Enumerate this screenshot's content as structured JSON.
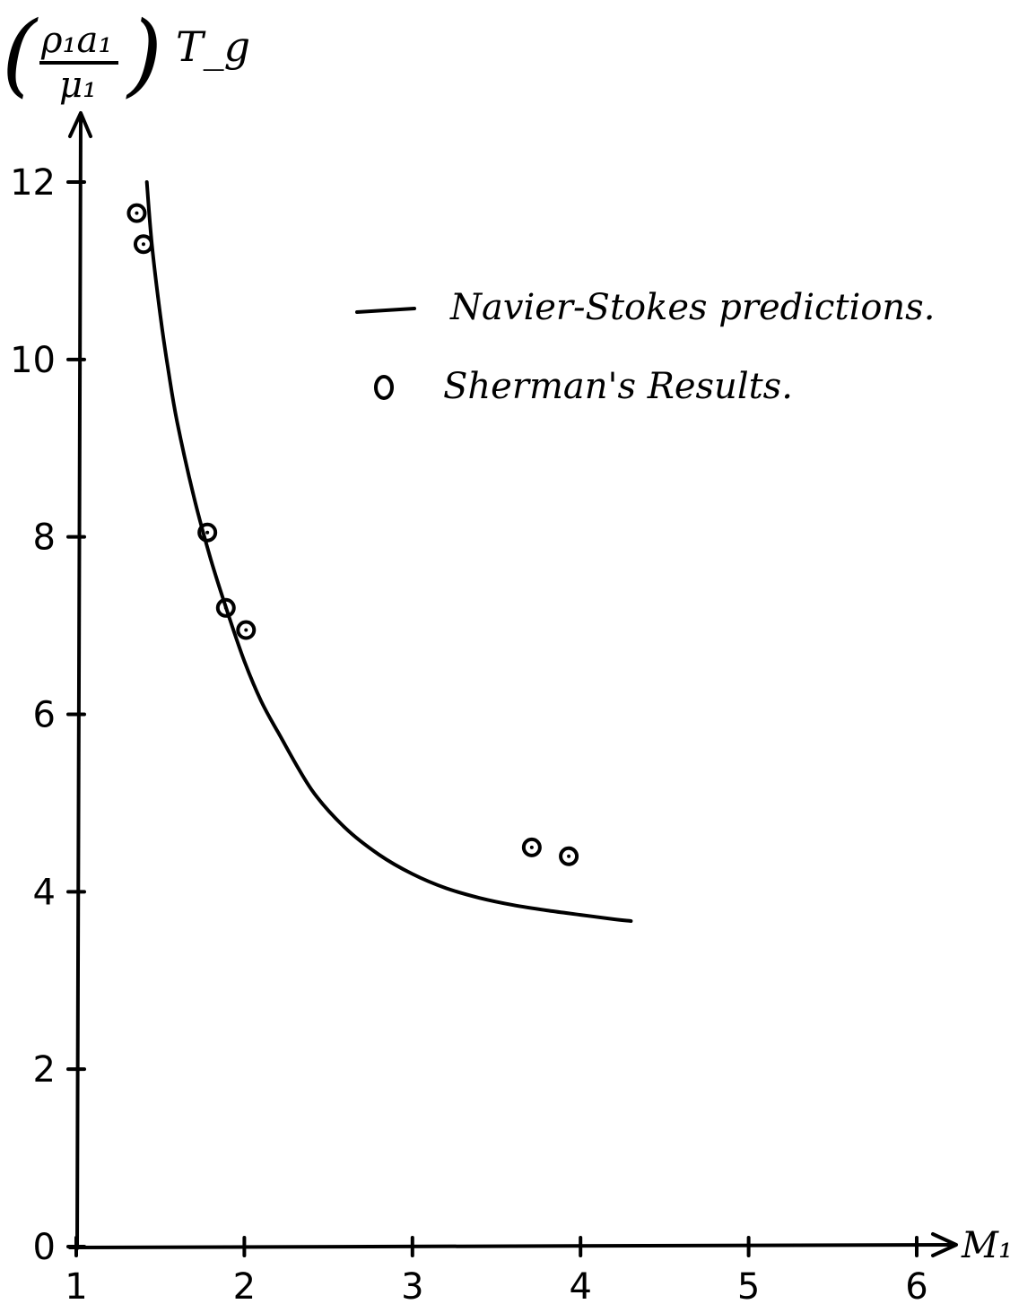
{
  "chart_data": {
    "type": "line",
    "title": "",
    "xlabel": "M₁",
    "ylabel": {
      "numerator": "ρ₁a₁",
      "denominator": "μ₁",
      "suffix": "T_g"
    },
    "xlim": [
      1,
      6
    ],
    "ylim": [
      0,
      12
    ],
    "x_ticks": [
      {
        "value": 1,
        "label": "1"
      },
      {
        "value": 2,
        "label": "2"
      },
      {
        "value": 3,
        "label": "3"
      },
      {
        "value": 4,
        "label": "4"
      },
      {
        "value": 5,
        "label": "5"
      },
      {
        "value": 6,
        "label": "6"
      }
    ],
    "y_ticks": [
      {
        "value": 0,
        "label": "0"
      },
      {
        "value": 2,
        "label": "2"
      },
      {
        "value": 4,
        "label": "4"
      },
      {
        "value": 6,
        "label": "6"
      },
      {
        "value": 8,
        "label": "8"
      },
      {
        "value": 10,
        "label": "10"
      },
      {
        "value": 12,
        "label": "12"
      }
    ],
    "grid": false,
    "legend_position": "top-right",
    "series": [
      {
        "name": "Navier-Stokes predictions.",
        "type": "line",
        "x": [
          1.42,
          1.45,
          1.5,
          1.55,
          1.6,
          1.7,
          1.8,
          1.9,
          2.0,
          2.1,
          2.2,
          2.4,
          2.6,
          2.8,
          3.0,
          3.2,
          3.4,
          3.6,
          3.8,
          4.0,
          4.2,
          4.3
        ],
        "y": [
          12.0,
          11.3,
          10.5,
          9.85,
          9.3,
          8.45,
          7.75,
          7.15,
          6.6,
          6.15,
          5.8,
          5.15,
          4.72,
          4.42,
          4.2,
          4.04,
          3.93,
          3.85,
          3.79,
          3.74,
          3.69,
          3.67
        ]
      },
      {
        "name": "Sherman's Results.",
        "type": "scatter",
        "x": [
          1.36,
          1.4,
          1.78,
          1.89,
          2.01,
          3.71,
          3.93
        ],
        "y": [
          11.65,
          11.3,
          8.05,
          7.2,
          6.95,
          4.5,
          4.4
        ]
      }
    ]
  }
}
